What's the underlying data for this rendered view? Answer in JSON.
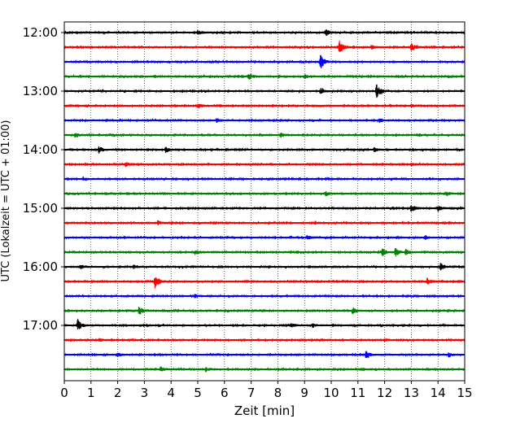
{
  "chart_data": {
    "type": "line",
    "title": "",
    "xlabel": "Zeit  [min]",
    "ylabel": "UTC (Lokalzeit = UTC + 01:00)",
    "xlim": [
      0,
      15
    ],
    "x_ticks": [
      "0",
      "1",
      "2",
      "3",
      "4",
      "5",
      "6",
      "7",
      "8",
      "9",
      "10",
      "11",
      "12",
      "13",
      "14",
      "15"
    ],
    "y_tick_labels": [
      "12:00",
      "13:00",
      "14:00",
      "15:00",
      "16:00",
      "17:00"
    ],
    "grid": "vertical dotted lines at each minute",
    "trace_interval_minutes": 15,
    "color_cycle": [
      "#000000",
      "#ff0000",
      "#0000ff",
      "#008000"
    ],
    "traces": [
      {
        "start": "12:00",
        "color": "#000000",
        "events": [
          [
            5.0,
            0.3
          ],
          [
            9.8,
            0.5
          ]
        ]
      },
      {
        "start": "12:15",
        "color": "#ff0000",
        "events": [
          [
            10.3,
            1.0
          ],
          [
            11.5,
            0.3
          ],
          [
            13.0,
            0.6
          ]
        ]
      },
      {
        "start": "12:30",
        "color": "#0000ff",
        "events": [
          [
            9.6,
            1.0
          ]
        ]
      },
      {
        "start": "12:45",
        "color": "#008000",
        "events": [
          [
            6.9,
            0.5
          ],
          [
            9.0,
            0.3
          ]
        ]
      },
      {
        "start": "13:00",
        "color": "#000000",
        "events": [
          [
            9.6,
            0.4
          ],
          [
            11.7,
            1.0
          ]
        ]
      },
      {
        "start": "13:15",
        "color": "#ff0000",
        "events": [
          [
            5.0,
            0.4
          ],
          [
            13.0,
            0.2
          ]
        ]
      },
      {
        "start": "13:30",
        "color": "#0000ff",
        "events": [
          [
            5.7,
            0.3
          ],
          [
            11.8,
            0.3
          ]
        ]
      },
      {
        "start": "13:45",
        "color": "#008000",
        "events": [
          [
            0.4,
            0.3
          ],
          [
            7.3,
            0.2
          ],
          [
            8.1,
            0.3
          ],
          [
            13.3,
            0.2
          ]
        ]
      },
      {
        "start": "14:00",
        "color": "#000000",
        "events": [
          [
            1.3,
            0.5
          ],
          [
            3.8,
            0.4
          ],
          [
            11.6,
            0.3
          ]
        ]
      },
      {
        "start": "14:15",
        "color": "#ff0000",
        "events": [
          [
            2.3,
            0.3
          ],
          [
            13.0,
            0.2
          ]
        ]
      },
      {
        "start": "14:30",
        "color": "#0000ff",
        "events": [
          [
            0.7,
            0.3
          ]
        ]
      },
      {
        "start": "14:45",
        "color": "#008000",
        "events": [
          [
            9.8,
            0.3
          ],
          [
            14.3,
            0.3
          ]
        ]
      },
      {
        "start": "15:00",
        "color": "#000000",
        "events": [
          [
            13.0,
            0.6
          ],
          [
            14.0,
            0.4
          ]
        ]
      },
      {
        "start": "15:15",
        "color": "#ff0000",
        "events": [
          [
            3.5,
            0.3
          ],
          [
            9.4,
            0.2
          ]
        ]
      },
      {
        "start": "15:30",
        "color": "#0000ff",
        "events": [
          [
            9.1,
            0.3
          ],
          [
            13.5,
            0.3
          ]
        ]
      },
      {
        "start": "15:45",
        "color": "#008000",
        "events": [
          [
            4.9,
            0.3
          ],
          [
            11.9,
            0.6
          ],
          [
            12.4,
            0.6
          ],
          [
            12.8,
            0.4
          ]
        ]
      },
      {
        "start": "16:00",
        "color": "#000000",
        "events": [
          [
            0.6,
            0.3
          ],
          [
            2.6,
            0.3
          ],
          [
            14.1,
            0.5
          ]
        ]
      },
      {
        "start": "16:15",
        "color": "#ff0000",
        "events": [
          [
            3.4,
            1.0
          ],
          [
            13.6,
            0.5
          ]
        ]
      },
      {
        "start": "16:30",
        "color": "#0000ff",
        "events": [
          [
            4.9,
            0.3
          ]
        ]
      },
      {
        "start": "16:45",
        "color": "#008000",
        "events": [
          [
            2.8,
            0.6
          ],
          [
            10.8,
            0.5
          ]
        ]
      },
      {
        "start": "17:00",
        "color": "#000000",
        "events": [
          [
            0.5,
            0.8
          ],
          [
            8.5,
            0.3
          ],
          [
            9.3,
            0.3
          ]
        ]
      },
      {
        "start": "17:15",
        "color": "#ff0000",
        "events": [
          [
            1.3,
            0.2
          ],
          [
            12.0,
            0.2
          ]
        ]
      },
      {
        "start": "17:30",
        "color": "#0000ff",
        "events": [
          [
            2.0,
            0.3
          ],
          [
            11.3,
            0.5
          ],
          [
            14.4,
            0.3
          ]
        ]
      },
      {
        "start": "17:45",
        "color": "#008000",
        "events": [
          [
            3.6,
            0.4
          ],
          [
            5.3,
            0.3
          ]
        ]
      }
    ]
  }
}
